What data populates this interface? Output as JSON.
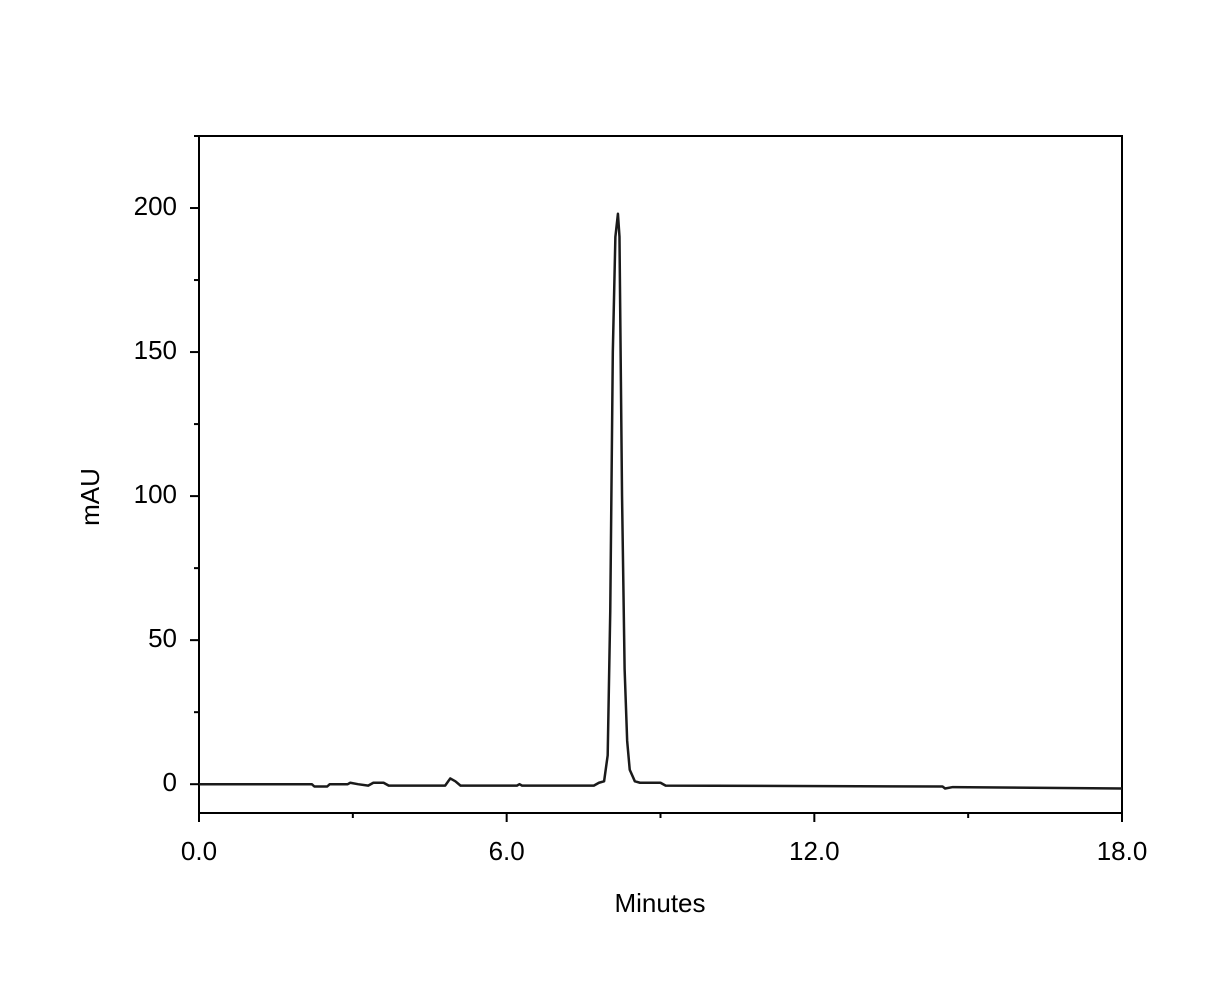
{
  "chart_data": {
    "type": "line",
    "x_label": "Minutes",
    "y_label": "mAU",
    "xlim": [
      0,
      18
    ],
    "ylim": [
      -10,
      225
    ],
    "xticks": [
      {
        "value": 0,
        "label": "0.0"
      },
      {
        "value": 6,
        "label": "6.0"
      },
      {
        "value": 12,
        "label": "12.0"
      },
      {
        "value": 18,
        "label": "18.0"
      }
    ],
    "xminorticks": [
      3,
      9,
      15
    ],
    "yticks": [
      0,
      50,
      100,
      150,
      200
    ],
    "yminorticks": [
      25,
      75,
      125,
      175,
      225
    ],
    "grid": false,
    "series": [
      {
        "color": "#1a1a1a",
        "x": [
          0,
          2.2,
          2.25,
          2.5,
          2.55,
          2.9,
          2.95,
          3.1,
          3.3,
          3.4,
          3.6,
          3.7,
          4.8,
          4.9,
          5.0,
          5.1,
          6.2,
          6.25,
          6.3,
          7.7,
          7.8,
          7.9,
          7.97,
          8.02,
          8.07,
          8.12,
          8.17,
          8.2,
          8.25,
          8.3,
          8.35,
          8.4,
          8.5,
          8.6,
          9.0,
          9.1,
          14.5,
          14.55,
          14.7,
          18
        ],
        "values": [
          0,
          0,
          -0.8,
          -0.8,
          0,
          0,
          0.5,
          0,
          -0.5,
          0.5,
          0.5,
          -0.5,
          -0.5,
          2,
          1,
          -0.5,
          -0.5,
          0,
          -0.5,
          -0.5,
          0.5,
          1,
          10,
          60,
          150,
          190,
          198,
          190,
          100,
          40,
          15,
          5,
          1,
          0.5,
          0.5,
          -0.5,
          -0.8,
          -1.5,
          -1,
          -1.5
        ]
      }
    ]
  }
}
